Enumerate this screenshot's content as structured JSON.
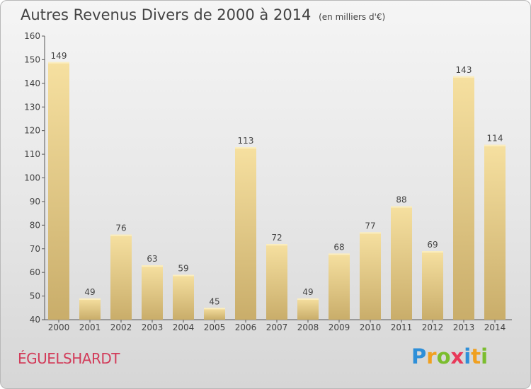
{
  "chart_data": {
    "type": "bar",
    "title": "Autres Revenus Divers de 2000 à 2014",
    "subtitle": "(en milliers d'€)",
    "categories": [
      "2000",
      "2001",
      "2002",
      "2003",
      "2004",
      "2005",
      "2006",
      "2007",
      "2008",
      "2009",
      "2010",
      "2011",
      "2012",
      "2013",
      "2014"
    ],
    "values": [
      149,
      49,
      76,
      63,
      59,
      45,
      113,
      72,
      49,
      68,
      77,
      88,
      69,
      143,
      114
    ],
    "ylim": [
      40,
      160
    ],
    "yticks": [
      40,
      50,
      60,
      70,
      80,
      90,
      100,
      110,
      120,
      130,
      140,
      150,
      160
    ],
    "xlabel": "",
    "ylabel": "",
    "grid": false,
    "bar_color": "#e8cc85"
  },
  "location": "ÉGUELSHARDT",
  "logo": {
    "letters": [
      "P",
      "r",
      "o",
      "x",
      "i",
      "t",
      "i"
    ],
    "colors": [
      "#2e8fd8",
      "#f0a020",
      "#7bbd2e",
      "#e83a5a",
      "#2e8fd8",
      "#f0a020",
      "#7bbd2e"
    ]
  }
}
